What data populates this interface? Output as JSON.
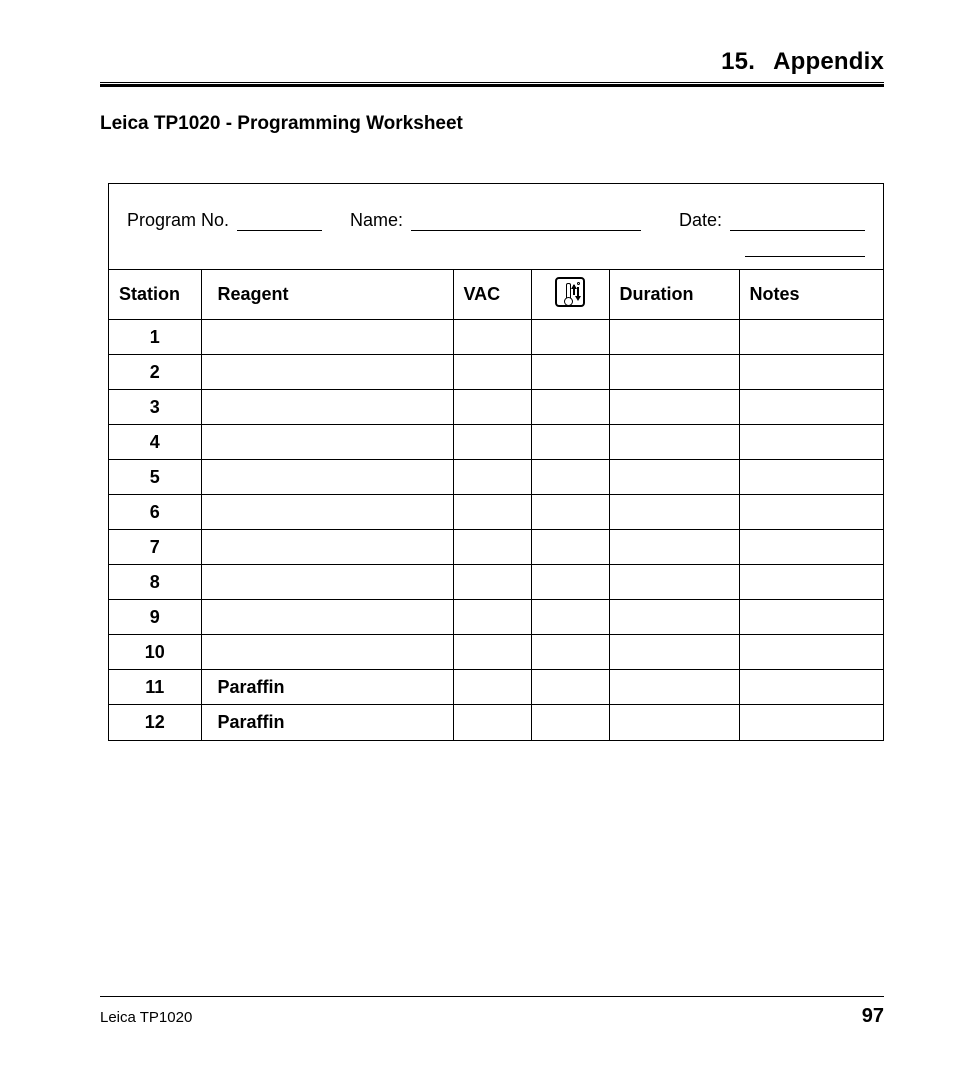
{
  "header": {
    "section_number": "15.",
    "section_title": "Appendix"
  },
  "title": "Leica TP1020 - Programming Worksheet",
  "info": {
    "program_no_label": "Program No.",
    "name_label": "Name:",
    "date_label": "Date:"
  },
  "table": {
    "columns": {
      "station": "Station",
      "reagent": "Reagent",
      "vac": "VAC",
      "icon": "temperature-agitation-icon",
      "duration": "Duration",
      "notes": "Notes"
    },
    "rows": [
      {
        "station": "1",
        "reagent": ""
      },
      {
        "station": "2",
        "reagent": ""
      },
      {
        "station": "3",
        "reagent": ""
      },
      {
        "station": "4",
        "reagent": ""
      },
      {
        "station": "5",
        "reagent": ""
      },
      {
        "station": "6",
        "reagent": ""
      },
      {
        "station": "7",
        "reagent": ""
      },
      {
        "station": "8",
        "reagent": ""
      },
      {
        "station": "9",
        "reagent": ""
      },
      {
        "station": "10",
        "reagent": ""
      },
      {
        "station": "11",
        "reagent": "Paraffin"
      },
      {
        "station": "12",
        "reagent": "Paraffin"
      }
    ]
  },
  "footer": {
    "product": "Leica TP1020",
    "page": "97"
  }
}
